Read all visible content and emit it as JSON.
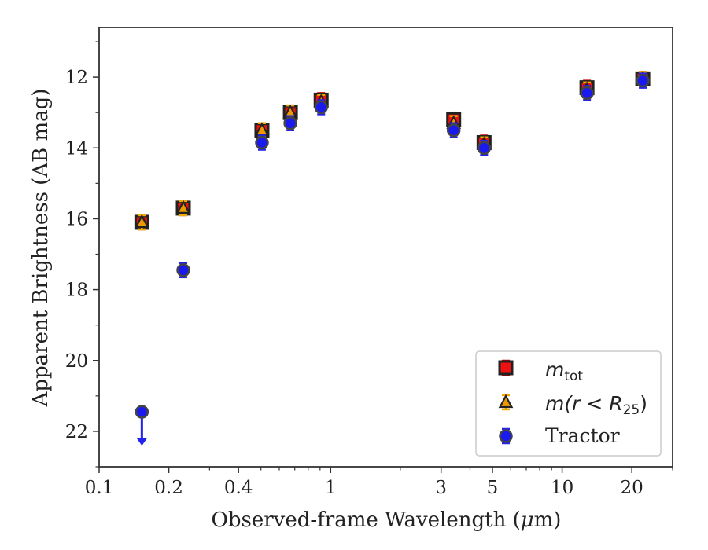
{
  "chart_data": {
    "type": "scatter",
    "xscale": "log",
    "xlim": [
      0.1,
      30
    ],
    "ylim": [
      23,
      10.6
    ],
    "y_inverted": true,
    "xlabel_pre": "Observed-frame Wavelength (",
    "xlabel_mu": "μ",
    "xlabel_post": "m)",
    "ylabel": "Apparent Brightness (AB mag)",
    "x_ticks": [
      {
        "value": 0.1,
        "label": "0.1"
      },
      {
        "value": 0.2,
        "label": "0.2"
      },
      {
        "value": 0.4,
        "label": "0.4"
      },
      {
        "value": 1,
        "label": "1"
      },
      {
        "value": 3,
        "label": "3"
      },
      {
        "value": 5,
        "label": "5"
      },
      {
        "value": 10,
        "label": "10"
      },
      {
        "value": 20,
        "label": "20"
      }
    ],
    "x_minor_ticks": [
      0.3,
      0.5,
      0.6,
      0.7,
      0.8,
      0.9,
      2,
      4,
      6,
      7,
      8,
      9,
      30
    ],
    "y_ticks": [
      {
        "value": 12,
        "label": "12"
      },
      {
        "value": 14,
        "label": "14"
      },
      {
        "value": 16,
        "label": "16"
      },
      {
        "value": 18,
        "label": "18"
      },
      {
        "value": 20,
        "label": "20"
      },
      {
        "value": 22,
        "label": "22"
      }
    ],
    "y_minor_ticks": [
      11,
      13,
      15,
      17,
      19,
      21,
      23
    ],
    "legend_position": "lower-right",
    "series": [
      {
        "key": "mtot",
        "marker": "square",
        "color": "#ee1111",
        "edge": "#222222",
        "errcolor": "#cc0000",
        "legend_base": "m",
        "legend_sub": "tot",
        "x": [
          0.153,
          0.231,
          0.505,
          0.67,
          0.91,
          3.4,
          4.6,
          12.8,
          22.3
        ],
        "y": [
          16.1,
          15.7,
          13.5,
          13.0,
          12.65,
          13.2,
          13.85,
          12.3,
          12.05
        ]
      },
      {
        "key": "mr25",
        "marker": "triangle",
        "color": "#ee9900",
        "edge": "#222222",
        "errcolor": "#eeaa00",
        "legend_base": "m",
        "legend_paren": "(r < R",
        "legend_sub": "25",
        "legend_close": ")",
        "x": [
          0.153,
          0.231,
          0.505,
          0.67,
          0.91,
          3.4,
          4.6,
          12.8,
          22.3
        ],
        "y": [
          16.1,
          15.7,
          13.5,
          13.0,
          12.7,
          13.3,
          13.9,
          12.35,
          12.05
        ]
      },
      {
        "key": "tractor",
        "marker": "circle",
        "color": "#1a1aee",
        "edge": "#444444",
        "errcolor": "#2222ee",
        "legend_label": "Tractor",
        "x": [
          0.153,
          0.231,
          0.505,
          0.67,
          0.91,
          3.4,
          4.6,
          12.8,
          22.3
        ],
        "y": [
          21.45,
          17.45,
          13.85,
          13.3,
          12.85,
          13.5,
          14.0,
          12.45,
          12.1
        ],
        "upper_limit_index": 0
      }
    ]
  }
}
